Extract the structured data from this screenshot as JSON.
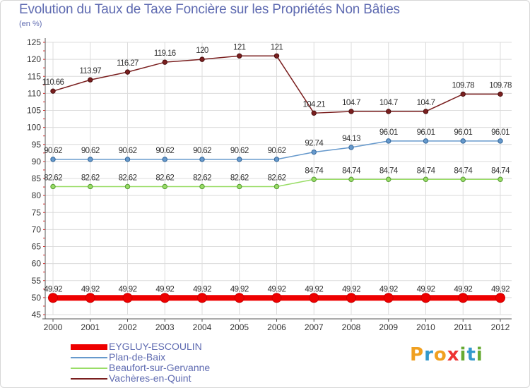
{
  "chart_data": {
    "type": "line",
    "title": "Evolution du Taux de Taxe Foncière sur les Propriétés Non Bâties",
    "subtitle": "(en %)",
    "xlabel": "",
    "ylabel": "",
    "ylim": [
      45,
      125
    ],
    "yticks": [
      45,
      50,
      55,
      60,
      65,
      70,
      75,
      80,
      85,
      90,
      95,
      100,
      105,
      110,
      115,
      120,
      125
    ],
    "categories": [
      "2000",
      "2001",
      "2002",
      "2003",
      "2004",
      "2005",
      "2006",
      "2007",
      "2008",
      "2009",
      "2010",
      "2011",
      "2012"
    ],
    "series": [
      {
        "name": "EYGLUY-ESCOULIN",
        "color": "#ee0000",
        "values": [
          49.92,
          49.92,
          49.92,
          49.92,
          49.92,
          49.92,
          49.92,
          49.92,
          49.92,
          49.92,
          49.92,
          49.92,
          49.92
        ],
        "labels": [
          "49.92",
          "49.92",
          "49.92",
          "49.92",
          "49.92",
          "49.92",
          "49.92",
          "49.92",
          "49.92",
          "49.92",
          "49.92",
          "49.92",
          "49.92"
        ]
      },
      {
        "name": "Plan-de-Baix",
        "color": "#6699cc",
        "values": [
          90.62,
          90.62,
          90.62,
          90.62,
          90.62,
          90.62,
          90.62,
          92.74,
          94.13,
          96.01,
          96.01,
          96.01,
          96.01
        ],
        "labels": [
          "90.62",
          "90.62",
          "90.62",
          "90.62",
          "90.62",
          "90.62",
          "90.62",
          "92.74",
          "94.13",
          "96.01",
          "96.01",
          "96.01",
          "96.01"
        ]
      },
      {
        "name": "Beaufort-sur-Gervanne",
        "color": "#99dd66",
        "values": [
          82.62,
          82.62,
          82.62,
          82.62,
          82.62,
          82.62,
          82.62,
          84.74,
          84.74,
          84.74,
          84.74,
          84.74,
          84.74
        ],
        "labels": [
          "82.62",
          "82.62",
          "82.62",
          "82.62",
          "82.62",
          "82.62",
          "82.62",
          "84.74",
          "84.74",
          "84.74",
          "84.74",
          "84.74",
          "84.74"
        ]
      },
      {
        "name": "Vachères-en-Quint",
        "color": "#7a1f1f",
        "values": [
          110.66,
          113.97,
          116.27,
          119.16,
          120,
          121,
          121,
          104.21,
          104.7,
          104.7,
          104.7,
          109.78,
          109.78
        ],
        "labels": [
          "110.66",
          "113.97",
          "116.27",
          "119.16",
          "120",
          "121",
          "121",
          "104.21",
          "104.7",
          "104.7",
          "104.7",
          "109.78",
          "109.78"
        ]
      }
    ],
    "legend_position": "bottom-left"
  },
  "brand": {
    "letters": [
      "P",
      "r",
      "o",
      "x",
      "i",
      "t",
      "i"
    ],
    "colors": [
      "#f0a020",
      "#3399cc",
      "#f0a020",
      "#ee3333",
      "#66aa33",
      "#3399cc",
      "#66aa33"
    ]
  }
}
